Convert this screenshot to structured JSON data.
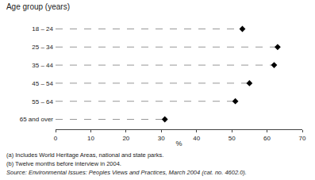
{
  "chart_data": {
    "type": "dot",
    "title": "Age group (years)",
    "categories": [
      "18 – 24",
      "25 – 34",
      "35 – 44",
      "45 – 54",
      "55 – 64",
      "65 and over"
    ],
    "values": [
      53,
      63,
      62,
      55,
      51,
      31
    ],
    "color": "#000000",
    "marker": "diamond",
    "line_style": "dashed",
    "xlabel": "%",
    "xlim": [
      0,
      70
    ],
    "xticks": [
      0,
      10,
      20,
      30,
      40,
      50,
      60,
      70
    ],
    "grid": false,
    "annotations": [
      "(a) Includes World Heritage Areas, national and state parks.",
      "(b) Twelve months before interview in 2004.",
      "Source: Environmental Issues: Peoples Views and Practices, March 2004 (cat. no. 4602.0)."
    ]
  }
}
